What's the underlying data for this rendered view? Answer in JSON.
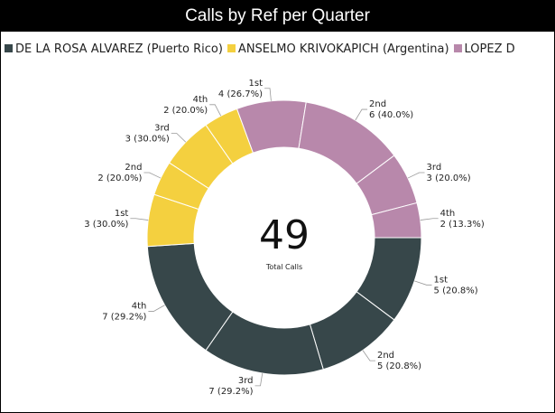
{
  "chart_data": {
    "type": "donut",
    "title": "Calls by Ref per Quarter",
    "categories": [
      "1st",
      "2nd",
      "3rd",
      "4th"
    ],
    "series": [
      {
        "name": "DE LA ROSA ALVAREZ (Puerto Rico)",
        "color": "#37474a",
        "values": [
          5,
          5,
          7,
          7
        ],
        "value_labels": [
          "5 (20.8%)",
          "5 (20.8%)",
          "7 (29.2%)",
          "7 (29.2%)"
        ]
      },
      {
        "name": "ANSELMO KRIVOKAPICH (Argentina)",
        "color": "#f4d03f",
        "values": [
          3,
          2,
          3,
          2
        ],
        "value_labels": [
          "3 (30.0%)",
          "2 (20.0%)",
          "3 (30.0%)",
          "2 (20.0%)"
        ]
      },
      {
        "name": "LOPEZ D",
        "color": "#b888ab",
        "values": [
          4,
          6,
          3,
          2
        ],
        "value_labels": [
          "4 (26.7%)",
          "6 (40.0%)",
          "3 (20.0%)",
          "2 (13.3%)"
        ]
      }
    ],
    "center_value": 49,
    "center_label": "Total Calls"
  }
}
